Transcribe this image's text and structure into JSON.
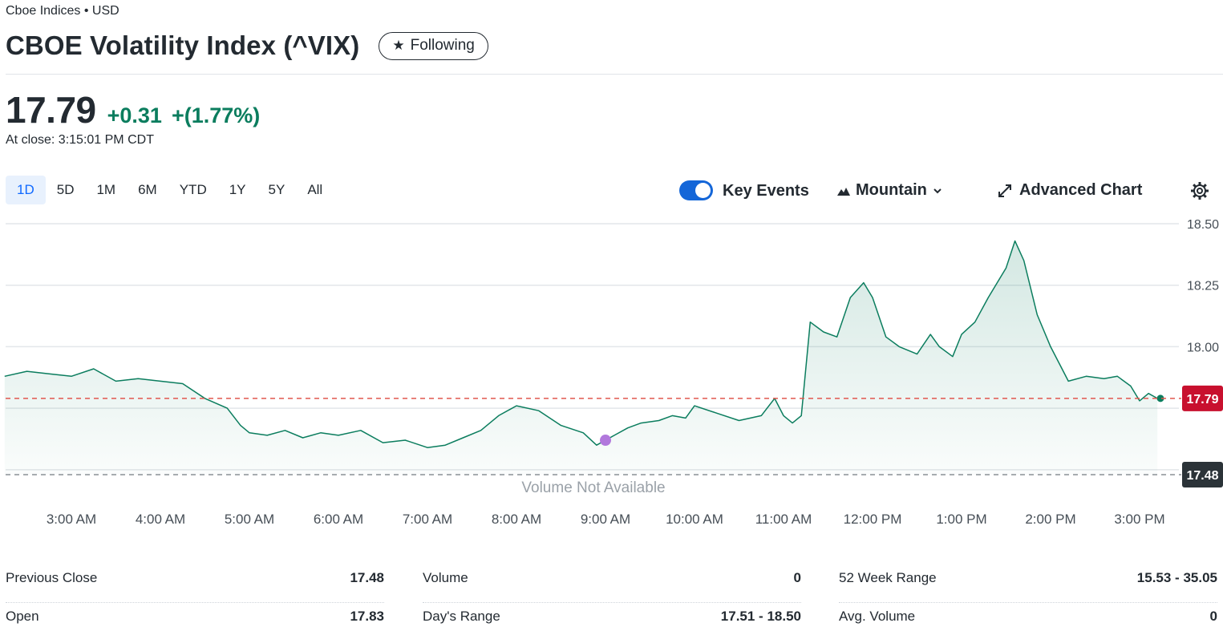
{
  "header": {
    "exchange": "Cboe Indices • USD",
    "title": "CBOE Volatility Index (^VIX)",
    "follow_label": "Following"
  },
  "quote": {
    "price": "17.79",
    "change": "+0.31",
    "change_pct": "+(1.77%)",
    "close_time": "At close: 3:15:01 PM CDT",
    "change_color": "#0b7d5e"
  },
  "ranges": [
    "1D",
    "5D",
    "1M",
    "6M",
    "YTD",
    "1Y",
    "5Y",
    "All"
  ],
  "active_range": "1D",
  "toolbar": {
    "key_events_label": "Key Events",
    "key_events_on": true,
    "chart_type_label": "Mountain",
    "advanced_chart_label": "Advanced Chart",
    "settings_icon": "gear-icon"
  },
  "chart_data": {
    "type": "area",
    "x_ticks": [
      "3:00 AM",
      "4:00 AM",
      "5:00 AM",
      "6:00 AM",
      "7:00 AM",
      "8:00 AM",
      "9:00 AM",
      "10:00 AM",
      "11:00 AM",
      "12:00 PM",
      "1:00 PM",
      "2:00 PM",
      "3:00 PM"
    ],
    "y_ticks": [
      "18.50",
      "18.25",
      "18.00"
    ],
    "ylim": [
      17.48,
      18.5
    ],
    "x_range_hours": [
      2.25,
      15.25
    ],
    "current_price_label": "17.79",
    "previous_close_label": "17.48",
    "volume_note": "Volume Not Available",
    "line_color": "#0b7d5e",
    "current_price_color": "#c8102e",
    "previous_close_color": "#2b3338",
    "key_event_color": "#b178dc",
    "key_event_time": 9.0,
    "series": [
      {
        "x": [
          2.25,
          2.5,
          2.75,
          3.0,
          3.25,
          3.5,
          3.75,
          4.0,
          4.25,
          4.5,
          4.75,
          4.9,
          5.0,
          5.2,
          5.4,
          5.6,
          5.8,
          6.0,
          6.25,
          6.5,
          6.75,
          7.0,
          7.2,
          7.4,
          7.6,
          7.8,
          8.0,
          8.25,
          8.5,
          8.75,
          8.9,
          9.0,
          9.1,
          9.25,
          9.4,
          9.6,
          9.75,
          9.9,
          10.0,
          10.25,
          10.5,
          10.75,
          10.9,
          11.0,
          11.1,
          11.2,
          11.3,
          11.45,
          11.6,
          11.75,
          11.9,
          12.0,
          12.15,
          12.3,
          12.5,
          12.65,
          12.75,
          12.9,
          13.0,
          13.15,
          13.3,
          13.5,
          13.6,
          13.7,
          13.85,
          14.0,
          14.1,
          14.2,
          14.4,
          14.6,
          14.75,
          14.9,
          15.0,
          15.1,
          15.2
        ],
        "values": [
          17.88,
          17.9,
          17.89,
          17.88,
          17.91,
          17.86,
          17.87,
          17.86,
          17.85,
          17.79,
          17.75,
          17.68,
          17.65,
          17.64,
          17.66,
          17.63,
          17.65,
          17.64,
          17.66,
          17.61,
          17.62,
          17.59,
          17.6,
          17.63,
          17.66,
          17.72,
          17.76,
          17.74,
          17.68,
          17.65,
          17.6,
          17.62,
          17.64,
          17.67,
          17.69,
          17.7,
          17.72,
          17.71,
          17.76,
          17.73,
          17.7,
          17.72,
          17.79,
          17.72,
          17.69,
          17.72,
          18.1,
          18.06,
          18.04,
          18.2,
          18.26,
          18.2,
          18.04,
          18.0,
          17.97,
          18.05,
          18.0,
          17.96,
          18.05,
          18.1,
          18.2,
          18.32,
          18.43,
          18.35,
          18.13,
          18.0,
          17.93,
          17.86,
          17.88,
          17.87,
          17.88,
          17.84,
          17.78,
          17.81,
          17.79
        ]
      }
    ]
  },
  "stats": [
    [
      {
        "label": "Previous Close",
        "value": "17.48"
      },
      {
        "label": "Open",
        "value": "17.83"
      }
    ],
    [
      {
        "label": "Volume",
        "value": "0"
      },
      {
        "label": "Day's Range",
        "value": "17.51 - 18.50"
      }
    ],
    [
      {
        "label": "52 Week Range",
        "value": "15.53 - 35.05"
      },
      {
        "label": "Avg. Volume",
        "value": "0"
      }
    ]
  ]
}
